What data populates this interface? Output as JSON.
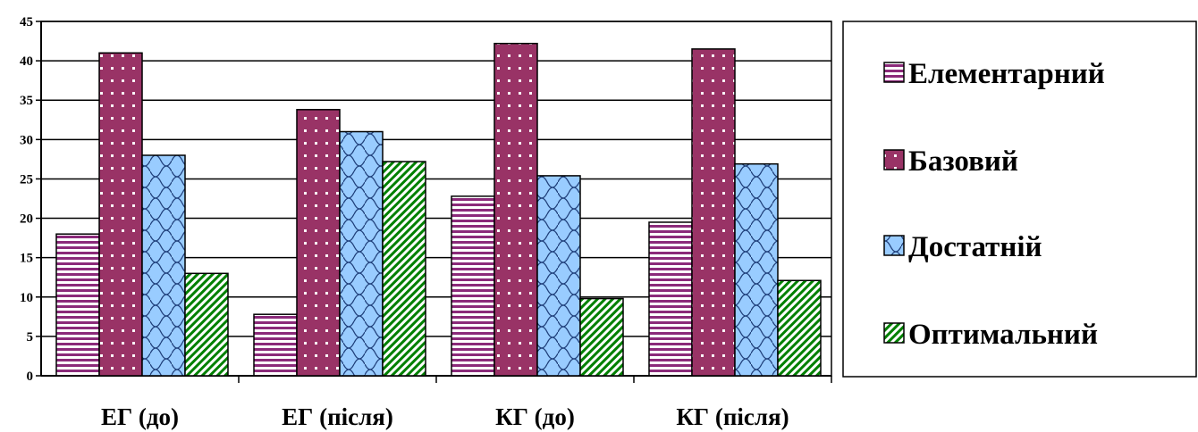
{
  "chart_data": {
    "type": "bar",
    "title": "",
    "xlabel": "",
    "ylabel": "",
    "categories": [
      "ЕГ (до)",
      "ЕГ (після)",
      "КГ (до)",
      "КГ (після)"
    ],
    "ylim": [
      0,
      45
    ],
    "yticks": [
      0,
      5,
      10,
      15,
      20,
      25,
      30,
      35,
      40,
      45
    ],
    "grid": true,
    "legend_position": "right",
    "series": [
      {
        "name": "Елементарний",
        "values": [
          18,
          7.8,
          22.8,
          19.5
        ],
        "color": "#8b2a7a",
        "pattern": "horizontal-stripes"
      },
      {
        "name": "Базовий",
        "values": [
          41,
          33.8,
          42.2,
          41.5
        ],
        "color": "#993366",
        "pattern": "dots"
      },
      {
        "name": "Достатній",
        "values": [
          28,
          31,
          25.4,
          26.9
        ],
        "color": "#99ccff",
        "pattern": "scales"
      },
      {
        "name": "Оптимальний",
        "values": [
          13,
          27.2,
          9.8,
          12.1
        ],
        "color": "#008000",
        "pattern": "diagonal-stripes"
      }
    ]
  }
}
